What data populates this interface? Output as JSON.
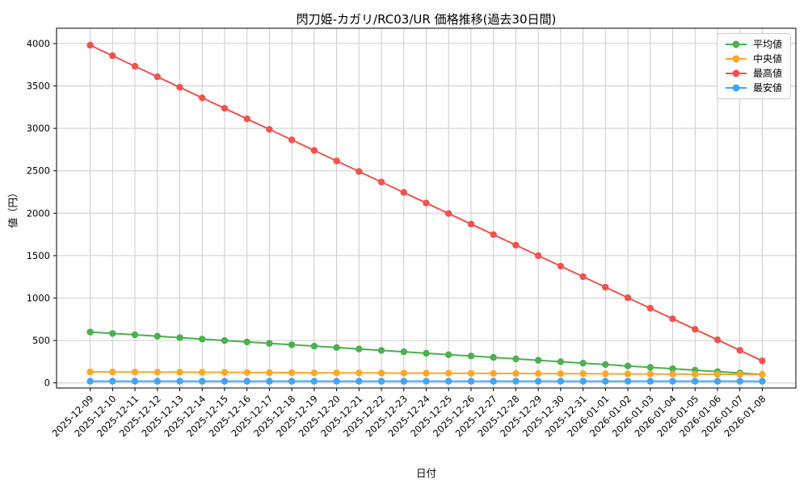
{
  "chart_data": {
    "type": "line",
    "title": "閃刀姫-カガリ/RC03/UR 価格推移(過去30日間)",
    "xlabel": "日付",
    "ylabel": "値（円）",
    "x": [
      "2025-12-09",
      "2025-12-10",
      "2025-12-11",
      "2025-12-12",
      "2025-12-13",
      "2025-12-14",
      "2025-12-15",
      "2025-12-16",
      "2025-12-17",
      "2025-12-18",
      "2025-12-19",
      "2025-12-20",
      "2025-12-21",
      "2025-12-22",
      "2025-12-23",
      "2025-12-24",
      "2025-12-25",
      "2025-12-26",
      "2025-12-27",
      "2025-12-28",
      "2025-12-29",
      "2025-12-30",
      "2025-12-31",
      "2026-01-01",
      "2026-01-02",
      "2026-01-03",
      "2026-01-04",
      "2026-01-05",
      "2026-01-06",
      "2026-01-07",
      "2026-01-08"
    ],
    "series": [
      {
        "key": "average",
        "name": "平均値",
        "color": "#4caf50",
        "values": [
          600,
          583,
          567,
          550,
          533,
          517,
          500,
          483,
          467,
          450,
          433,
          417,
          400,
          383,
          367,
          350,
          333,
          317,
          300,
          283,
          267,
          250,
          233,
          217,
          200,
          183,
          167,
          150,
          133,
          117,
          100
        ]
      },
      {
        "key": "median",
        "name": "中央値",
        "color": "#ffa726",
        "values": [
          130,
          129,
          128,
          127,
          126,
          125,
          124,
          123,
          122,
          121,
          120,
          119,
          118,
          117,
          116,
          115,
          114,
          113,
          112,
          111,
          110,
          109,
          108,
          107,
          106,
          105,
          104,
          103,
          102,
          101,
          100
        ]
      },
      {
        "key": "max",
        "name": "最高値",
        "color": "#ef5350",
        "values": [
          3980,
          3856,
          3732,
          3608,
          3484,
          3360,
          3236,
          3112,
          2988,
          2864,
          2740,
          2616,
          2492,
          2368,
          2244,
          2120,
          1996,
          1872,
          1748,
          1624,
          1500,
          1376,
          1252,
          1128,
          1004,
          880,
          756,
          632,
          508,
          384,
          260
        ]
      },
      {
        "key": "min",
        "name": "最安値",
        "color": "#42a5f5",
        "values": [
          20,
          20,
          20,
          20,
          20,
          20,
          20,
          20,
          20,
          20,
          20,
          20,
          20,
          20,
          20,
          20,
          20,
          20,
          20,
          20,
          20,
          20,
          20,
          20,
          20,
          20,
          20,
          20,
          20,
          20,
          20
        ]
      }
    ],
    "yticks": [
      0,
      500,
      1000,
      1500,
      2000,
      2500,
      3000,
      3500,
      4000
    ],
    "ylim": [
      -60,
      4180
    ],
    "grid": true,
    "legend_position": "top-right"
  }
}
